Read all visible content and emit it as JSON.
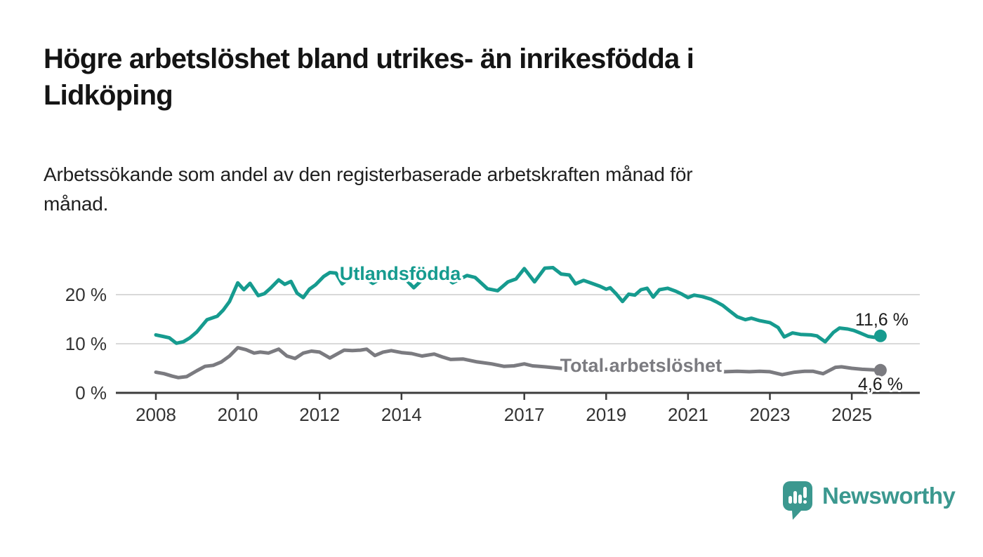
{
  "header": {
    "title": "Högre arbetslöshet bland utrikes- än inrikesfödda i Lidköping",
    "title_lines": [
      "Högre arbetslöshet bland utrikes- än inrikesfödda i",
      "Lidköping"
    ],
    "subtitle": "Arbetssökande som andel av den registerbaserade arbetskraften månad för månad.",
    "subtitle_lines": [
      "Arbetssökande som andel av den registerbaserade arbetskraften månad för",
      "månad."
    ]
  },
  "chart_data": {
    "type": "line",
    "title": "Högre arbetslöshet bland utrikes- än inrikesfödda i Lidköping",
    "subtitle": "Arbetssökande som andel av den registerbaserade arbetskraften månad för månad.",
    "xlabel": "",
    "ylabel": "",
    "xlim": [
      2007.0,
      2026.6
    ],
    "ylim": [
      0,
      27
    ],
    "grid": "horizontal",
    "legend_position": "inline-labels",
    "x_tick_labels": [
      "2008",
      "2010",
      "2012",
      "2014",
      "2017",
      "2019",
      "2021",
      "2023",
      "2025"
    ],
    "x_tick_years": [
      2008,
      2010,
      2012,
      2014,
      2017,
      2019,
      2021,
      2023,
      2025
    ],
    "y_tick_labels": [
      "0 %",
      "10 %",
      "20 %"
    ],
    "y_tick_values": [
      0,
      10,
      20
    ],
    "colors": {
      "foreign_born": "#169b8f",
      "total": "#7b7b80",
      "axis": "#3c3c3c",
      "grid": "#d9d9d9",
      "tick_text": "#333333",
      "value_label": "#1b1b1b"
    },
    "series": [
      {
        "name": "Utlandsfödda",
        "color": "#169b8f",
        "label_pos": {
          "x": 2013.97,
          "y": 24.3
        },
        "end_label": "11,6 %",
        "end_value": 11.6,
        "points": [
          [
            2008.0,
            11.8
          ],
          [
            2008.17,
            11.5
          ],
          [
            2008.33,
            11.2
          ],
          [
            2008.5,
            10.1
          ],
          [
            2008.67,
            10.4
          ],
          [
            2008.83,
            11.2
          ],
          [
            2009.0,
            12.4
          ],
          [
            2009.25,
            14.9
          ],
          [
            2009.5,
            15.6
          ],
          [
            2009.65,
            16.9
          ],
          [
            2009.8,
            18.6
          ],
          [
            2010.0,
            22.4
          ],
          [
            2010.15,
            21.0
          ],
          [
            2010.3,
            22.3
          ],
          [
            2010.5,
            19.8
          ],
          [
            2010.65,
            20.2
          ],
          [
            2010.8,
            21.3
          ],
          [
            2011.0,
            23.0
          ],
          [
            2011.15,
            22.1
          ],
          [
            2011.3,
            22.7
          ],
          [
            2011.45,
            20.3
          ],
          [
            2011.6,
            19.4
          ],
          [
            2011.75,
            21.1
          ],
          [
            2011.9,
            22.0
          ],
          [
            2012.1,
            23.7
          ],
          [
            2012.25,
            24.5
          ],
          [
            2012.4,
            24.4
          ],
          [
            2012.55,
            22.2
          ],
          [
            2012.75,
            23.6
          ],
          [
            2013.0,
            24.0
          ],
          [
            2013.3,
            22.3
          ],
          [
            2013.6,
            23.8
          ],
          [
            2013.85,
            24.2
          ],
          [
            2014.0,
            24.0
          ],
          [
            2014.3,
            21.4
          ],
          [
            2014.6,
            23.8
          ],
          [
            2015.0,
            24.0
          ],
          [
            2015.25,
            22.4
          ],
          [
            2015.6,
            23.9
          ],
          [
            2015.8,
            23.5
          ],
          [
            2016.1,
            21.2
          ],
          [
            2016.35,
            20.8
          ],
          [
            2016.6,
            22.6
          ],
          [
            2016.8,
            23.2
          ],
          [
            2017.0,
            25.3
          ],
          [
            2017.25,
            22.6
          ],
          [
            2017.5,
            25.4
          ],
          [
            2017.7,
            25.5
          ],
          [
            2017.9,
            24.2
          ],
          [
            2018.1,
            24.0
          ],
          [
            2018.25,
            22.2
          ],
          [
            2018.45,
            22.9
          ],
          [
            2018.65,
            22.3
          ],
          [
            2018.85,
            21.7
          ],
          [
            2019.0,
            21.1
          ],
          [
            2019.1,
            21.4
          ],
          [
            2019.25,
            20.1
          ],
          [
            2019.4,
            18.6
          ],
          [
            2019.55,
            20.1
          ],
          [
            2019.7,
            19.9
          ],
          [
            2019.85,
            21.0
          ],
          [
            2020.0,
            21.3
          ],
          [
            2020.15,
            19.5
          ],
          [
            2020.3,
            21.0
          ],
          [
            2020.5,
            21.3
          ],
          [
            2020.7,
            20.7
          ],
          [
            2020.85,
            20.1
          ],
          [
            2021.0,
            19.4
          ],
          [
            2021.15,
            19.9
          ],
          [
            2021.35,
            19.6
          ],
          [
            2021.55,
            19.1
          ],
          [
            2021.7,
            18.5
          ],
          [
            2021.85,
            17.8
          ],
          [
            2022.0,
            16.8
          ],
          [
            2022.2,
            15.5
          ],
          [
            2022.4,
            14.9
          ],
          [
            2022.55,
            15.2
          ],
          [
            2022.75,
            14.7
          ],
          [
            2023.0,
            14.3
          ],
          [
            2023.2,
            13.3
          ],
          [
            2023.35,
            11.4
          ],
          [
            2023.55,
            12.2
          ],
          [
            2023.75,
            11.9
          ],
          [
            2024.0,
            11.8
          ],
          [
            2024.15,
            11.6
          ],
          [
            2024.35,
            10.4
          ],
          [
            2024.55,
            12.3
          ],
          [
            2024.7,
            13.2
          ],
          [
            2024.9,
            13.0
          ],
          [
            2025.05,
            12.7
          ],
          [
            2025.2,
            12.2
          ],
          [
            2025.4,
            11.5
          ],
          [
            2025.55,
            11.3
          ],
          [
            2025.7,
            11.6
          ]
        ]
      },
      {
        "name": "Total arbetslöshet",
        "color": "#7b7b80",
        "label_pos": {
          "x": 2019.85,
          "y": 5.6
        },
        "end_label": "4,6 %",
        "end_value": 4.6,
        "points": [
          [
            2008.0,
            4.2
          ],
          [
            2008.2,
            3.9
          ],
          [
            2008.4,
            3.4
          ],
          [
            2008.55,
            3.1
          ],
          [
            2008.75,
            3.3
          ],
          [
            2009.0,
            4.5
          ],
          [
            2009.2,
            5.4
          ],
          [
            2009.4,
            5.6
          ],
          [
            2009.6,
            6.3
          ],
          [
            2009.8,
            7.5
          ],
          [
            2010.0,
            9.2
          ],
          [
            2010.2,
            8.8
          ],
          [
            2010.4,
            8.1
          ],
          [
            2010.55,
            8.3
          ],
          [
            2010.75,
            8.1
          ],
          [
            2011.0,
            8.9
          ],
          [
            2011.2,
            7.5
          ],
          [
            2011.4,
            7.0
          ],
          [
            2011.6,
            8.1
          ],
          [
            2011.8,
            8.5
          ],
          [
            2012.0,
            8.3
          ],
          [
            2012.25,
            7.1
          ],
          [
            2012.6,
            8.7
          ],
          [
            2012.8,
            8.6
          ],
          [
            2013.0,
            8.7
          ],
          [
            2013.15,
            8.9
          ],
          [
            2013.35,
            7.6
          ],
          [
            2013.55,
            8.3
          ],
          [
            2013.75,
            8.6
          ],
          [
            2014.0,
            8.2
          ],
          [
            2014.25,
            8.0
          ],
          [
            2014.5,
            7.5
          ],
          [
            2014.8,
            7.9
          ],
          [
            2015.0,
            7.3
          ],
          [
            2015.2,
            6.8
          ],
          [
            2015.5,
            6.9
          ],
          [
            2015.85,
            6.3
          ],
          [
            2016.2,
            5.9
          ],
          [
            2016.5,
            5.4
          ],
          [
            2016.75,
            5.5
          ],
          [
            2017.0,
            5.9
          ],
          [
            2017.2,
            5.5
          ],
          [
            2017.5,
            5.3
          ],
          [
            2018.0,
            4.9
          ],
          [
            2018.5,
            4.7
          ],
          [
            2019.0,
            4.8
          ],
          [
            2019.5,
            5.0
          ],
          [
            2020.0,
            5.2
          ],
          [
            2020.4,
            6.0
          ],
          [
            2020.8,
            5.8
          ],
          [
            2021.0,
            5.5
          ],
          [
            2021.4,
            5.0
          ],
          [
            2021.9,
            4.3
          ],
          [
            2022.2,
            4.4
          ],
          [
            2022.5,
            4.3
          ],
          [
            2022.75,
            4.4
          ],
          [
            2023.0,
            4.3
          ],
          [
            2023.3,
            3.7
          ],
          [
            2023.6,
            4.2
          ],
          [
            2023.85,
            4.4
          ],
          [
            2024.05,
            4.4
          ],
          [
            2024.3,
            3.9
          ],
          [
            2024.6,
            5.2
          ],
          [
            2024.75,
            5.3
          ],
          [
            2025.0,
            5.0
          ],
          [
            2025.25,
            4.8
          ],
          [
            2025.5,
            4.7
          ],
          [
            2025.7,
            4.6
          ]
        ]
      }
    ]
  },
  "footer": {
    "brand": "Newsworthy",
    "brand_icon": "bar-chart-speech-bubble-icon",
    "brand_color": "#3b988f"
  }
}
